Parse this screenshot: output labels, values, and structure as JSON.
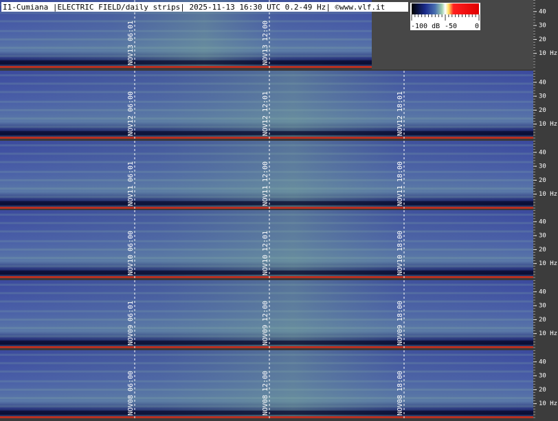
{
  "title": "I1-Cumiana |ELECTRIC FIELD/daily strips| 2025-11-13 16:30 UTC 0.2-49 Hz| ©www.vlf.it",
  "colorbar": {
    "labels": [
      "-100 dB",
      "-50",
      "0"
    ]
  },
  "freq_axis": {
    "ticks": [
      "40",
      "30",
      "20",
      "10 Hz"
    ]
  },
  "strips": [
    {
      "date": "NOV13",
      "times": [
        "06:01",
        "12:00"
      ]
    },
    {
      "date": "NOV12",
      "times": [
        "06:00",
        "12:01",
        "18:01"
      ]
    },
    {
      "date": "NOV11",
      "times": [
        "06:01",
        "12:00",
        "18:00"
      ]
    },
    {
      "date": "NOV10",
      "times": [
        "06:00",
        "12:01",
        "18:00"
      ]
    },
    {
      "date": "NOV09",
      "times": [
        "06:01",
        "12:00",
        "18:00"
      ]
    },
    {
      "date": "NOV08",
      "times": [
        "06:00",
        "12:00",
        "18:00"
      ]
    }
  ]
}
